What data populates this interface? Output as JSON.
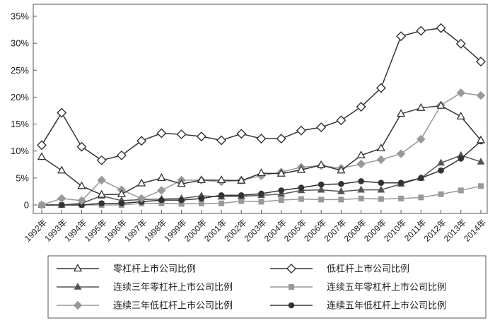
{
  "chart_data": {
    "type": "line",
    "title": "",
    "xlabel": "",
    "ylabel": "",
    "ylim": [
      0,
      35
    ],
    "y_ticks": [
      "0",
      "5%",
      "10%",
      "15%",
      "20%",
      "25%",
      "30%",
      "35%"
    ],
    "y_unit": "%",
    "grid": false,
    "legend_position": "bottom",
    "categories": [
      "1992年",
      "1993年",
      "1994年",
      "1995年",
      "1996年",
      "1997年",
      "1998年",
      "1999年",
      "2000年",
      "2001年",
      "2002年",
      "2003年",
      "2004年",
      "2005年",
      "2006年",
      "2007年",
      "2008年",
      "2009年",
      "2010年",
      "2011年",
      "2012年",
      "2013年",
      "2014年"
    ],
    "series": [
      {
        "name": "零杠杆上市公司比例",
        "marker": "triangle-open",
        "color": "#333333",
        "values": [
          8.9,
          6.4,
          3.5,
          1.9,
          2.0,
          4.0,
          5.0,
          3.9,
          4.6,
          4.6,
          4.5,
          5.9,
          5.8,
          6.5,
          7.4,
          6.4,
          9.2,
          10.5,
          16.9,
          18.0,
          18.4,
          16.4,
          12.0
        ]
      },
      {
        "name": "低杠杆上市公司比例",
        "marker": "diamond-open",
        "color": "#333333",
        "values": [
          11.1,
          17.1,
          10.8,
          8.3,
          9.2,
          11.9,
          13.3,
          13.1,
          12.7,
          12.0,
          13.2,
          12.3,
          12.3,
          13.8,
          14.4,
          15.7,
          18.2,
          21.7,
          31.3,
          32.3,
          32.8,
          29.9,
          26.6
        ]
      },
      {
        "name": "连续三年零杠杆上市公司比例",
        "marker": "triangle-filled",
        "color": "#555555",
        "values": [
          0.0,
          0.0,
          0.3,
          1.7,
          0.8,
          1.0,
          1.1,
          1.2,
          1.7,
          1.5,
          1.6,
          1.8,
          2.0,
          2.7,
          2.8,
          2.5,
          2.8,
          2.8,
          3.9,
          5.0,
          7.8,
          9.2,
          8.0
        ]
      },
      {
        "name": "连续五年零杠杆上市公司比例",
        "marker": "square-filled",
        "color": "#999999",
        "values": [
          0.0,
          0.0,
          0.0,
          0.0,
          0.0,
          0.3,
          0.3,
          0.2,
          0.3,
          0.3,
          0.7,
          0.6,
          0.9,
          1.1,
          1.0,
          1.0,
          1.2,
          1.1,
          1.2,
          1.4,
          2.0,
          2.7,
          3.5
        ]
      },
      {
        "name": "连续三年低杠杆上市公司比例",
        "marker": "diamond-filled",
        "color": "#999999",
        "values": [
          0.0,
          1.2,
          0.8,
          4.6,
          2.8,
          1.2,
          2.7,
          4.6,
          4.6,
          4.3,
          4.6,
          5.4,
          6.1,
          7.0,
          7.3,
          6.8,
          7.6,
          8.4,
          9.5,
          12.2,
          18.5,
          20.8,
          20.3
        ]
      },
      {
        "name": "连续五年低杠杆上市公司比例",
        "marker": "circle-filled",
        "color": "#333333",
        "values": [
          0.0,
          0.0,
          0.0,
          0.3,
          0.3,
          0.6,
          0.9,
          0.9,
          1.2,
          1.8,
          1.8,
          2.1,
          2.7,
          3.2,
          3.8,
          3.9,
          4.4,
          4.1,
          4.1,
          5.0,
          6.4,
          8.6,
          11.8
        ]
      }
    ]
  }
}
